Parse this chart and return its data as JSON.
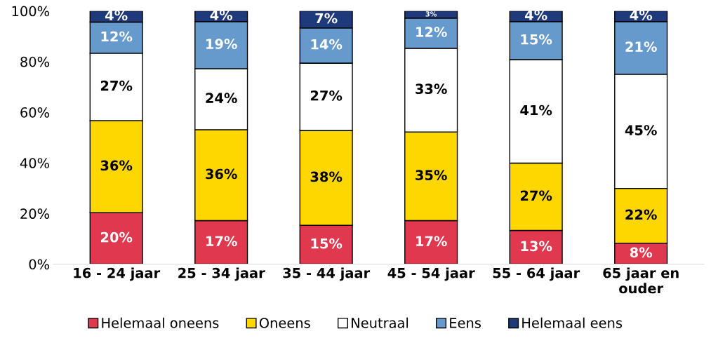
{
  "chart_data": {
    "type": "bar",
    "stacked": true,
    "categories": [
      "16 - 24 jaar",
      "25 - 34 jaar",
      "35 - 44 jaar",
      "45 - 54 jaar",
      "55 - 64 jaar",
      "65 jaar en\nouder"
    ],
    "series": [
      {
        "name": "Helemaal oneens",
        "color": "#e0384f",
        "values": [
          20.3,
          17.2,
          15.3,
          17.2,
          13.3,
          8.3
        ],
        "value_labels": [
          "20%",
          "17%",
          "15%",
          "17%",
          "13%",
          "8%"
        ]
      },
      {
        "name": "Oneens",
        "color": "#ffd700",
        "values": [
          36.4,
          35.9,
          37.5,
          35.0,
          26.6,
          21.6
        ],
        "value_labels": [
          "36%",
          "36%",
          "38%",
          "35%",
          "27%",
          "22%"
        ]
      },
      {
        "name": "Neutraal",
        "color": "#ffffff",
        "values": [
          26.6,
          24.1,
          26.6,
          33.1,
          40.9,
          45.1
        ],
        "value_labels": [
          "27%",
          "24%",
          "27%",
          "33%",
          "41%",
          "45%"
        ]
      },
      {
        "name": "Eens",
        "color": "#6699cc",
        "values": [
          12.3,
          18.6,
          13.9,
          11.9,
          15.0,
          20.8
        ],
        "value_labels": [
          "12%",
          "19%",
          "14%",
          "12%",
          "15%",
          "21%"
        ]
      },
      {
        "name": "Helemaal eens",
        "color": "#1f3a7a",
        "values": [
          4.4,
          4.2,
          6.7,
          2.8,
          4.2,
          4.2
        ],
        "value_labels": [
          "4%",
          "4%",
          "7%",
          "3%",
          "4%",
          "4%"
        ]
      }
    ],
    "ylim": [
      0,
      100
    ],
    "yticks": [
      {
        "value": 0,
        "label": "0%"
      },
      {
        "value": 20,
        "label": "20%"
      },
      {
        "value": 40,
        "label": "40%"
      },
      {
        "value": 60,
        "label": "60%"
      },
      {
        "value": 80,
        "label": "80%"
      },
      {
        "value": 100,
        "label": "100%"
      }
    ],
    "grid": false,
    "legend": "bottom"
  }
}
